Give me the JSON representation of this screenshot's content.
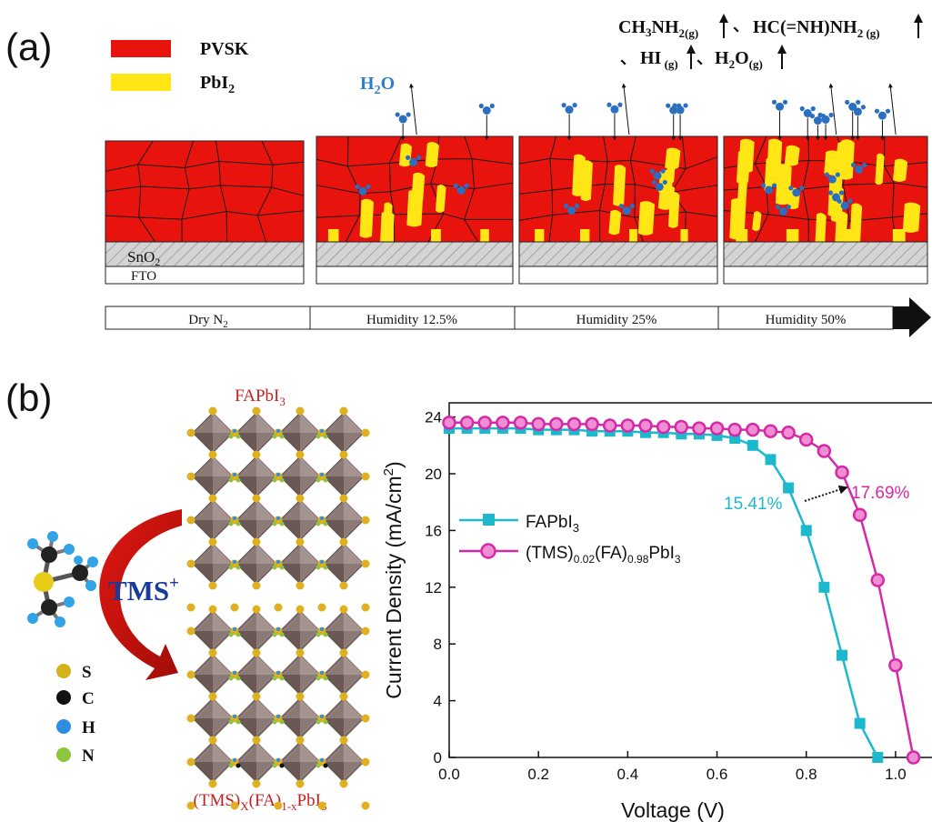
{
  "panel_a": {
    "label": "(a)",
    "legend": [
      {
        "name": "PVSK",
        "color": "#e8130c"
      },
      {
        "name": "PbI2",
        "color": "#ffe614"
      }
    ],
    "water_label": "H2O",
    "gas_products": {
      "g1": "CH3NH2(g)",
      "g2": "HC(=NH)NH2(g)",
      "g3": "HI(g)",
      "g4": "H2O(g)"
    },
    "layers": {
      "sno2": "SnO2",
      "fto": "FTO"
    },
    "conditions": [
      "Dry N2",
      "Humidity 12.5%",
      "Humidity 25%",
      "Humidity 50%"
    ]
  },
  "panel_b": {
    "label": "(b)",
    "top_crystal": "FAPbI3",
    "bottom_crystal": "(TMS)X(FA)1-XPbI3",
    "cation": "TMS+",
    "atoms": [
      {
        "symbol": "S",
        "color": "#d4b21a"
      },
      {
        "symbol": "C",
        "color": "#111111"
      },
      {
        "symbol": "H",
        "color": "#2f8de0"
      },
      {
        "symbol": "N",
        "color": "#8cc63f"
      }
    ]
  },
  "chart_data": {
    "type": "line",
    "xlabel": "Voltage (V)",
    "ylabel": "Current Density (mA/cm2)",
    "xlim": [
      0,
      1.1
    ],
    "ylim": [
      0,
      25
    ],
    "xticks": [
      "0.0",
      "0.2",
      "0.4",
      "0.6",
      "0.8",
      "1.0"
    ],
    "yticks": [
      "0",
      "4",
      "8",
      "12",
      "16",
      "20",
      "24"
    ],
    "legend_position": "middle-left",
    "annotations": [
      {
        "text": "15.41%",
        "color": "#1cb8cc"
      },
      {
        "text": "17.69%",
        "color": "#d42aa8"
      }
    ],
    "series": [
      {
        "name": "FAPbI3",
        "color": "#1cb8cc",
        "marker": "square",
        "x": [
          0.0,
          0.04,
          0.08,
          0.12,
          0.16,
          0.2,
          0.24,
          0.28,
          0.32,
          0.36,
          0.4,
          0.44,
          0.48,
          0.52,
          0.56,
          0.6,
          0.64,
          0.68,
          0.72,
          0.76,
          0.8,
          0.84,
          0.88,
          0.92,
          0.96
        ],
        "y": [
          23.2,
          23.2,
          23.2,
          23.2,
          23.2,
          23.1,
          23.1,
          23.1,
          23.0,
          23.0,
          23.0,
          22.9,
          22.9,
          22.8,
          22.8,
          22.7,
          22.5,
          22.0,
          21.0,
          19.0,
          16.0,
          12.0,
          7.2,
          2.4,
          0.0
        ]
      },
      {
        "name": "(TMS)0.02(FA)0.98PbI3",
        "color": "#d42aa8",
        "marker": "circle",
        "x": [
          0.0,
          0.04,
          0.08,
          0.12,
          0.16,
          0.2,
          0.24,
          0.28,
          0.32,
          0.36,
          0.4,
          0.44,
          0.48,
          0.52,
          0.56,
          0.6,
          0.64,
          0.68,
          0.72,
          0.76,
          0.8,
          0.84,
          0.88,
          0.92,
          0.96,
          1.0,
          1.04
        ],
        "y": [
          23.6,
          23.6,
          23.6,
          23.6,
          23.6,
          23.5,
          23.5,
          23.5,
          23.5,
          23.4,
          23.4,
          23.4,
          23.3,
          23.3,
          23.2,
          23.2,
          23.1,
          23.1,
          23.0,
          22.9,
          22.4,
          21.6,
          20.1,
          17.1,
          12.5,
          6.5,
          0.0
        ]
      }
    ]
  }
}
